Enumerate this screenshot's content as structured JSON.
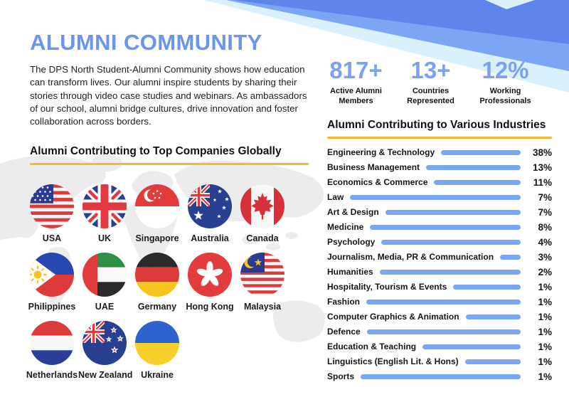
{
  "header": {
    "title": "ALUMNI COMMUNITY",
    "description": "The DPS North Student-Alumni Community shows how education can transform lives. Our alumni inspire students by sharing their stories through video case studies and webinars. As ambassadors of our school, alumni bridge cultures, drive innovation and foster collaboration across borders."
  },
  "stats": [
    {
      "value": "817+",
      "label": "Active Alumni Members"
    },
    {
      "value": "13+",
      "label": "Countries Represented"
    },
    {
      "value": "12%",
      "label": "Working Professionals"
    }
  ],
  "companies": {
    "heading": "Alumni Contributing to Top Companies Globally",
    "flags": [
      {
        "label": "USA",
        "icon": "flag-usa"
      },
      {
        "label": "UK",
        "icon": "flag-uk"
      },
      {
        "label": "Singapore",
        "icon": "flag-singapore"
      },
      {
        "label": "Australia",
        "icon": "flag-australia"
      },
      {
        "label": "Canada",
        "icon": "flag-canada"
      },
      {
        "label": "Philippines",
        "icon": "flag-philippines"
      },
      {
        "label": "UAE",
        "icon": "flag-uae"
      },
      {
        "label": "Germany",
        "icon": "flag-germany"
      },
      {
        "label": "Hong Kong",
        "icon": "flag-hongkong"
      },
      {
        "label": "Malaysia",
        "icon": "flag-malaysia"
      },
      {
        "label": "Netherlands",
        "icon": "flag-netherlands"
      },
      {
        "label": "New Zealand",
        "icon": "flag-newzealand"
      },
      {
        "label": "Ukraine",
        "icon": "flag-ukraine"
      }
    ]
  },
  "industries": {
    "heading": "Alumni Contributing to Various Industries"
  },
  "chart_data": {
    "type": "bar",
    "orientation": "horizontal",
    "title": "Alumni Contributing to Various Industries",
    "categories": [
      "Engineering & Technology",
      "Business Management",
      "Economics & Commerce",
      "Law",
      "Art & Design",
      "Medicine",
      "Psychology",
      "Journalism, Media, PR & Communication",
      "Humanities",
      "Hospitality, Tourism & Events",
      "Fashion",
      "Computer Graphics & Animation",
      "Defence",
      "Education & Teaching",
      "Linguistics (English Lit. & Hons)",
      "Sports"
    ],
    "values": [
      38,
      13,
      11,
      7,
      7,
      8,
      4,
      3,
      2,
      1,
      1,
      1,
      1,
      1,
      1,
      1
    ],
    "unit": "%",
    "bar_color": "#7aa7f5",
    "value_labels_position": "right",
    "layout_note": "bars are leader lines starting after each label and ending at a shared right edge"
  },
  "colors": {
    "title_blue": "#6b94ee",
    "stat_blue": "#7aa1f2",
    "bar_blue": "#7aa7f5",
    "underline_yellow": "#f6b92d",
    "ribbon_dark": "#5e86ea",
    "ribbon_light": "#7ba6f3",
    "ribbon_pale": "#d9f1fd",
    "map_gray": "#ececec"
  }
}
